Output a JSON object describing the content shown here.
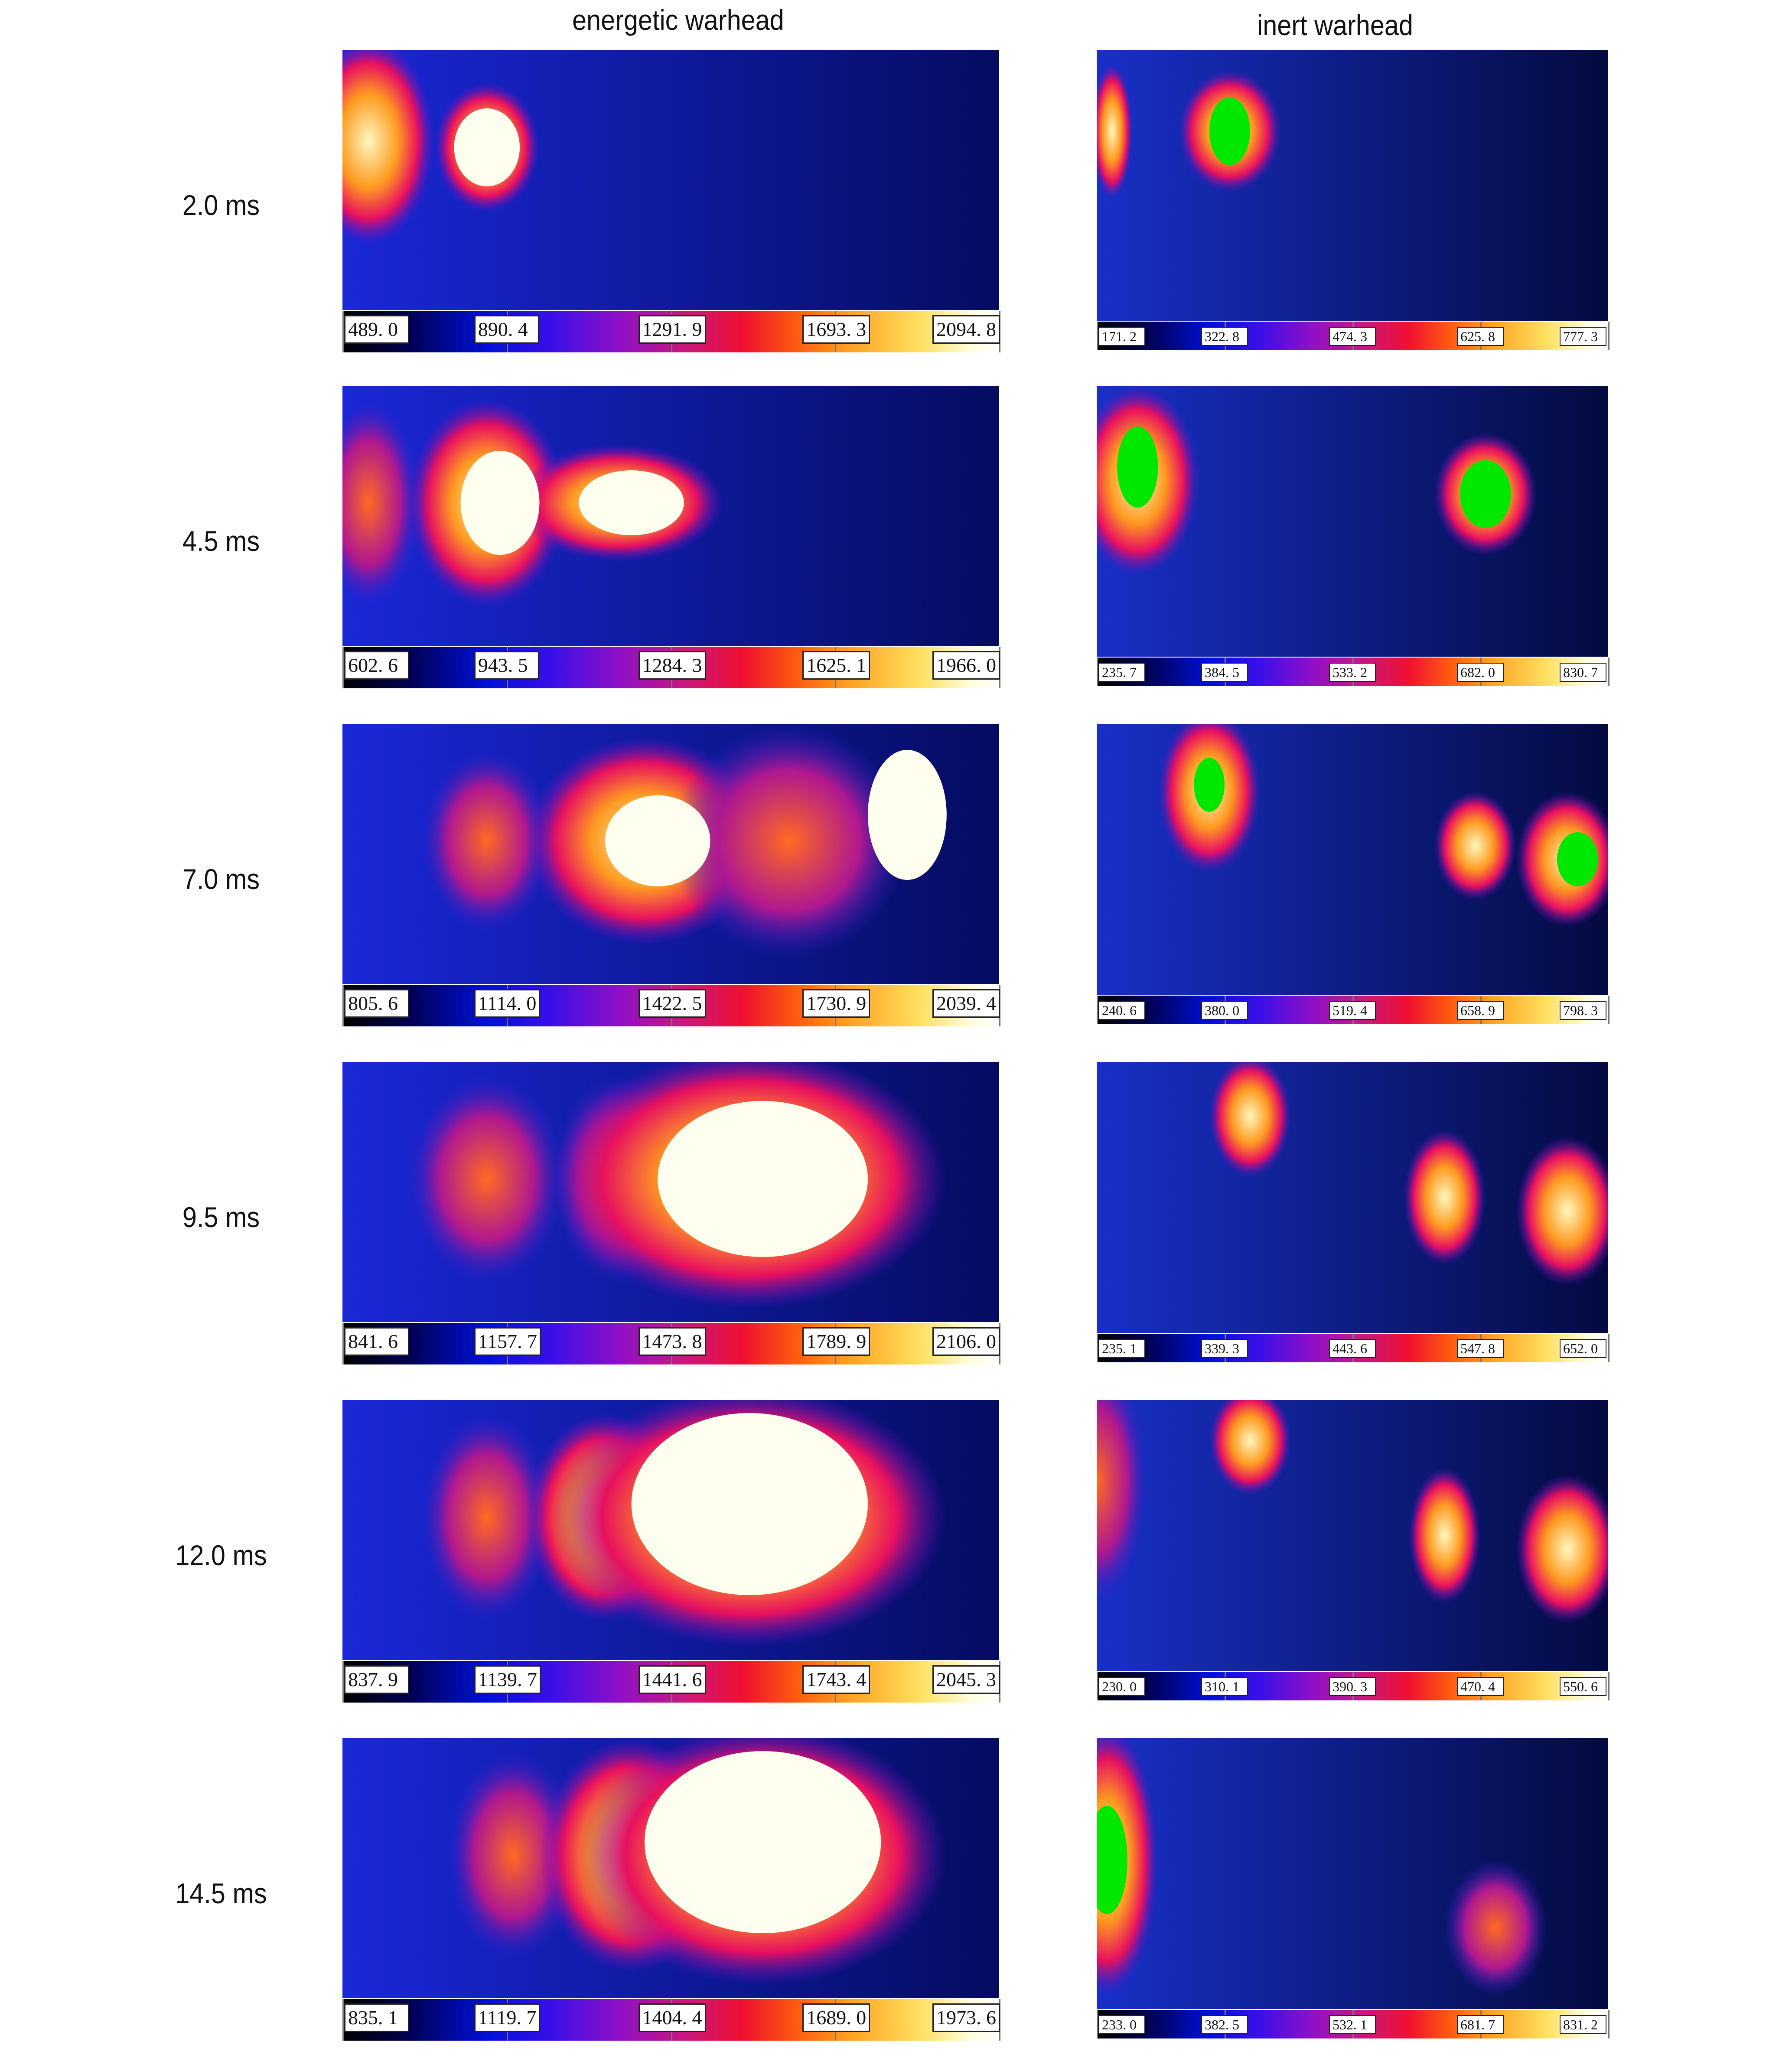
{
  "columns": {
    "left_title": "energetic warhead",
    "right_title": "inert warhead"
  },
  "colorbar_gradient": [
    "#000000",
    "#000050",
    "#0010d8",
    "#8e10c8",
    "#f01030",
    "#ff8c10",
    "#ffe060",
    "#ffffff"
  ],
  "rows": [
    {
      "time": "2.0 ms",
      "energetic": {
        "scale": [
          "489. 0",
          "890. 4",
          "1291. 9",
          "1693. 3",
          "2094. 8"
        ]
      },
      "inert": {
        "scale": [
          "171. 2",
          "322. 8",
          "474. 3",
          "625. 8",
          "777. 3"
        ]
      }
    },
    {
      "time": "4.5 ms",
      "energetic": {
        "scale": [
          "602. 6",
          "943. 5",
          "1284. 3",
          "1625. 1",
          "1966. 0"
        ]
      },
      "inert": {
        "scale": [
          "235. 7",
          "384. 5",
          "533. 2",
          "682. 0",
          "830. 7"
        ]
      }
    },
    {
      "time": "7.0 ms",
      "energetic": {
        "scale": [
          "805. 6",
          "1114. 0",
          "1422. 5",
          "1730. 9",
          "2039. 4"
        ]
      },
      "inert": {
        "scale": [
          "240. 6",
          "380. 0",
          "519. 4",
          "658. 9",
          "798. 3"
        ]
      }
    },
    {
      "time": "9.5 ms",
      "energetic": {
        "scale": [
          "841. 6",
          "1157. 7",
          "1473. 8",
          "1789. 9",
          "2106. 0"
        ]
      },
      "inert": {
        "scale": [
          "235. 1",
          "339. 3",
          "443. 6",
          "547. 8",
          "652. 0"
        ]
      }
    },
    {
      "time": "12.0 ms",
      "energetic": {
        "scale": [
          "837. 9",
          "1139. 7",
          "1441. 6",
          "1743. 4",
          "2045. 3"
        ]
      },
      "inert": {
        "scale": [
          "230. 0",
          "310. 1",
          "390. 3",
          "470. 4",
          "550. 6"
        ]
      }
    },
    {
      "time": "14.5 ms",
      "energetic": {
        "scale": [
          "835. 1",
          "1119. 7",
          "1404. 4",
          "1689. 0",
          "1973. 6"
        ]
      },
      "inert": {
        "scale": [
          "233. 0",
          "382. 5",
          "532. 1",
          "681. 7",
          "831. 2"
        ]
      }
    }
  ]
}
